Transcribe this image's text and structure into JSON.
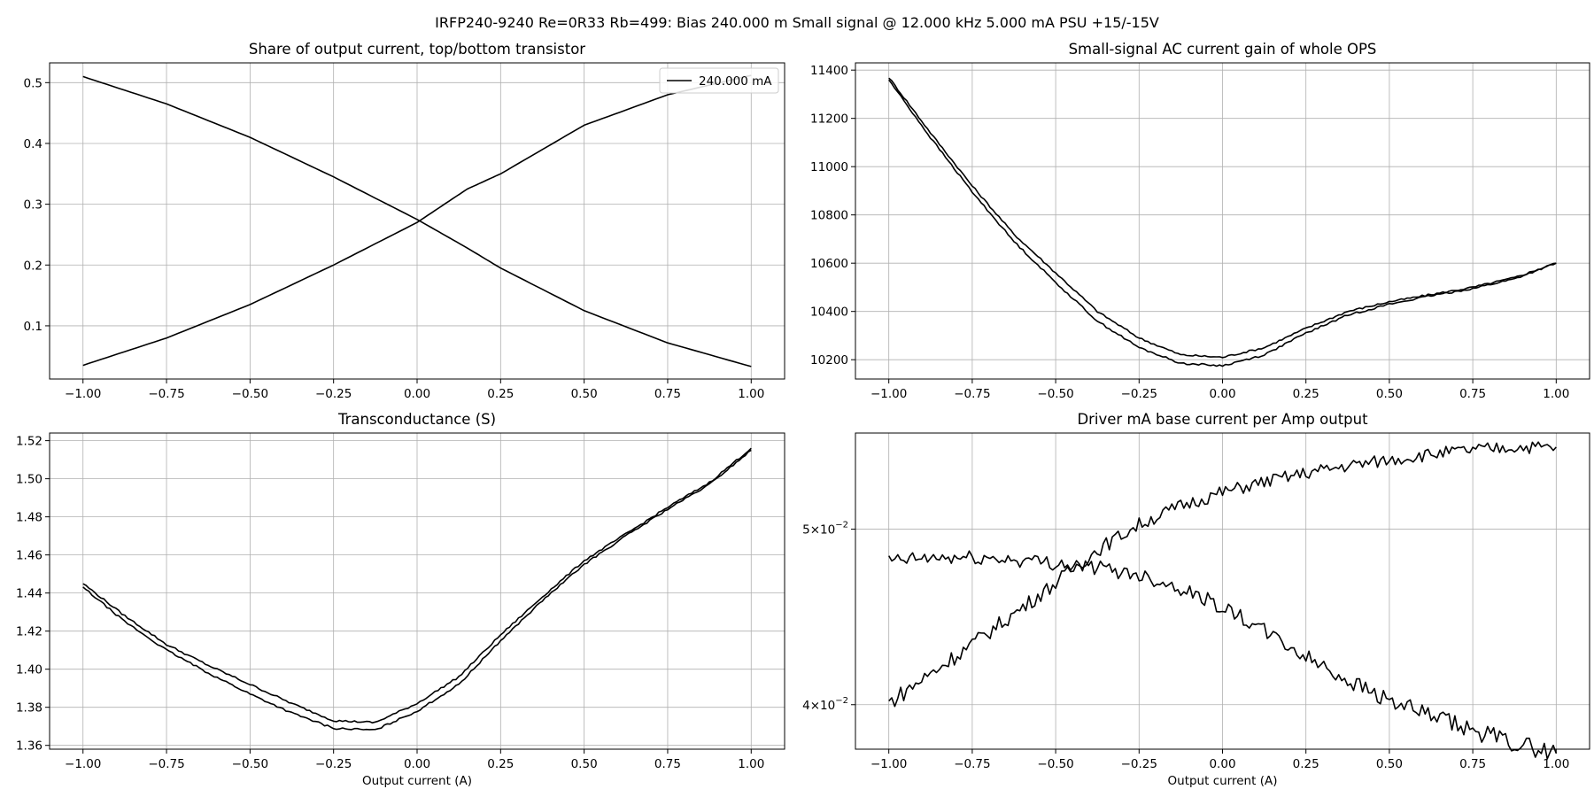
{
  "suptitle": "IRFP240-9240 Re=0R33 Rb=499: Bias 240.000 m Small signal @ 12.000 kHz 5.000 mA PSU +15/-15V",
  "chart_data": [
    {
      "type": "line",
      "title": "Share of output current, top/bottom transistor",
      "xlabel": "",
      "ylabel": "",
      "xlim": [
        -1.1,
        1.1
      ],
      "ylim": [
        0.0125,
        0.5325
      ],
      "grid": true,
      "legend": {
        "placement": "top-right",
        "entries": [
          "240.000 mA"
        ]
      },
      "xticks": [
        -1.0,
        -0.75,
        -0.5,
        -0.25,
        0.0,
        0.25,
        0.5,
        0.75,
        1.0
      ],
      "xticklabels": [
        "−1.00",
        "−0.75",
        "−0.50",
        "−0.25",
        "0.00",
        "0.25",
        "0.50",
        "0.75",
        "1.00"
      ],
      "yticks": [
        0.1,
        0.2,
        0.3,
        0.4,
        0.5
      ],
      "yticklabels": [
        "0.1",
        "0.2",
        "0.3",
        "0.4",
        "0.5"
      ],
      "series": [
        {
          "name": "240.000 mA",
          "x": [
            -1.0,
            -0.75,
            -0.5,
            -0.25,
            0.0,
            0.15,
            0.25,
            0.5,
            0.75,
            1.0
          ],
          "y": [
            0.51,
            0.465,
            0.41,
            0.345,
            0.275,
            0.228,
            0.195,
            0.125,
            0.072,
            0.033
          ]
        },
        {
          "x": [
            -1.0,
            -0.75,
            -0.5,
            -0.25,
            0.0,
            0.15,
            0.25,
            0.5,
            0.75,
            1.0
          ],
          "y": [
            0.035,
            0.08,
            0.135,
            0.2,
            0.27,
            0.325,
            0.35,
            0.43,
            0.48,
            0.512
          ]
        }
      ]
    },
    {
      "type": "line",
      "title": "Small-signal AC current gain of whole OPS",
      "xlabel": "",
      "ylabel": "",
      "xlim": [
        -1.1,
        1.1
      ],
      "ylim": [
        10120,
        11430
      ],
      "grid": true,
      "xticks": [
        -1.0,
        -0.75,
        -0.5,
        -0.25,
        0.0,
        0.25,
        0.5,
        0.75,
        1.0
      ],
      "xticklabels": [
        "−1.00",
        "−0.75",
        "−0.50",
        "−0.25",
        "0.00",
        "0.25",
        "0.50",
        "0.75",
        "1.00"
      ],
      "yticks": [
        10200,
        10400,
        10600,
        10800,
        11000,
        11200,
        11400
      ],
      "yticklabels": [
        "10200",
        "10400",
        "10600",
        "10800",
        "11000",
        "11200",
        "11400"
      ],
      "series": [
        {
          "x": [
            -1.0,
            -0.875,
            -0.75,
            -0.625,
            -0.5,
            -0.375,
            -0.25,
            -0.125,
            0.0,
            0.125,
            0.25,
            0.375,
            0.5,
            0.625,
            0.75,
            0.875,
            1.0
          ],
          "y": [
            11370,
            11140,
            10920,
            10720,
            10560,
            10400,
            10290,
            10220,
            10210,
            10250,
            10330,
            10400,
            10440,
            10470,
            10500,
            10540,
            10600
          ]
        },
        {
          "x": [
            -1.0,
            -0.875,
            -0.75,
            -0.625,
            -0.5,
            -0.375,
            -0.25,
            -0.125,
            0.0,
            0.125,
            0.25,
            0.375,
            0.5,
            0.625,
            0.75,
            0.875,
            1.0
          ],
          "y": [
            11360,
            11120,
            10895,
            10690,
            10520,
            10360,
            10250,
            10185,
            10175,
            10220,
            10310,
            10385,
            10430,
            10465,
            10495,
            10535,
            10600
          ]
        }
      ]
    },
    {
      "type": "line",
      "title": "Transconductance (S)",
      "xlabel": "Output current (A)",
      "ylabel": "",
      "xlim": [
        -1.1,
        1.1
      ],
      "ylim": [
        1.358,
        1.524
      ],
      "grid": true,
      "xticks": [
        -1.0,
        -0.75,
        -0.5,
        -0.25,
        0.0,
        0.25,
        0.5,
        0.75,
        1.0
      ],
      "xticklabels": [
        "−1.00",
        "−0.75",
        "−0.50",
        "−0.25",
        "0.00",
        "0.25",
        "0.50",
        "0.75",
        "1.00"
      ],
      "yticks": [
        1.36,
        1.38,
        1.4,
        1.42,
        1.44,
        1.46,
        1.48,
        1.5,
        1.52
      ],
      "yticklabels": [
        "1.36",
        "1.38",
        "1.40",
        "1.42",
        "1.44",
        "1.46",
        "1.48",
        "1.50",
        "1.52"
      ],
      "series": [
        {
          "x": [
            -1.0,
            -0.875,
            -0.75,
            -0.625,
            -0.5,
            -0.375,
            -0.25,
            -0.125,
            0.0,
            0.125,
            0.25,
            0.375,
            0.5,
            0.625,
            0.75,
            0.875,
            1.0
          ],
          "y": [
            1.445,
            1.428,
            1.413,
            1.402,
            1.392,
            1.382,
            1.373,
            1.372,
            1.382,
            1.396,
            1.418,
            1.438,
            1.457,
            1.471,
            1.485,
            1.498,
            1.516
          ]
        },
        {
          "x": [
            -1.0,
            -0.875,
            -0.75,
            -0.625,
            -0.5,
            -0.375,
            -0.25,
            -0.125,
            0.0,
            0.125,
            0.25,
            0.375,
            0.5,
            0.625,
            0.75,
            0.875,
            1.0
          ],
          "y": [
            1.443,
            1.425,
            1.41,
            1.398,
            1.387,
            1.377,
            1.369,
            1.368,
            1.378,
            1.392,
            1.415,
            1.436,
            1.455,
            1.47,
            1.484,
            1.497,
            1.515
          ]
        }
      ]
    },
    {
      "type": "line",
      "title": "Driver mA base current per Amp output",
      "xlabel": "Output current (A)",
      "ylabel": "",
      "yscale": "log",
      "xlim": [
        -1.1,
        1.1
      ],
      "ylim": [
        0.0378,
        0.0565
      ],
      "grid": true,
      "xticks": [
        -1.0,
        -0.75,
        -0.5,
        -0.25,
        0.0,
        0.25,
        0.5,
        0.75,
        1.0
      ],
      "xticklabels": [
        "−1.00",
        "−0.75",
        "−0.50",
        "−0.25",
        "0.00",
        "0.25",
        "0.50",
        "0.75",
        "1.00"
      ],
      "yticks": [
        0.04,
        0.05
      ],
      "yticklabels": [
        {
          "mantissa": "4",
          "base": "10",
          "exp": "−2"
        },
        {
          "mantissa": "5",
          "base": "10",
          "exp": "−2"
        }
      ],
      "series": [
        {
          "x": [
            -1.0,
            -0.875,
            -0.75,
            -0.625,
            -0.5,
            -0.375,
            -0.25,
            -0.125,
            0.0,
            0.125,
            0.25,
            0.375,
            0.5,
            0.625,
            0.75,
            0.875,
            1.0
          ],
          "y": [
            0.0401,
            0.0416,
            0.0432,
            0.0449,
            0.0467,
            0.0487,
            0.0503,
            0.0515,
            0.0524,
            0.0531,
            0.0537,
            0.0542,
            0.0546,
            0.055,
            0.0553,
            0.0555,
            0.0555
          ]
        },
        {
          "x": [
            -1.0,
            -0.875,
            -0.75,
            -0.625,
            -0.5,
            -0.375,
            -0.25,
            -0.125,
            0.0,
            0.125,
            0.25,
            0.375,
            0.5,
            0.625,
            0.75,
            0.875,
            1.0
          ],
          "y": [
            0.048,
            0.0482,
            0.0482,
            0.0481,
            0.0479,
            0.0476,
            0.0472,
            0.0464,
            0.0453,
            0.0439,
            0.0425,
            0.0413,
            0.0402,
            0.0394,
            0.0387,
            0.0381,
            0.0376
          ]
        }
      ]
    }
  ]
}
